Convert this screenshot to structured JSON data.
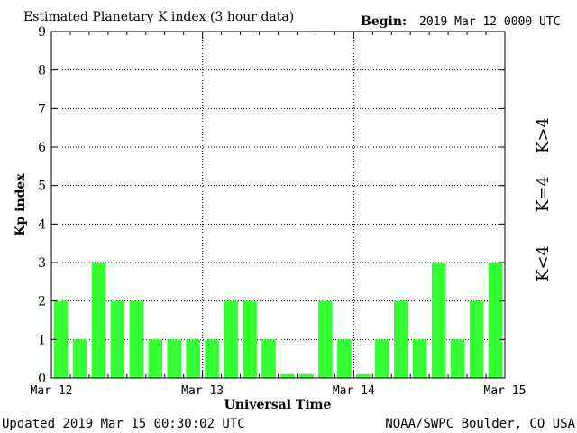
{
  "header": {
    "title": "Estimated Planetary K index (3 hour data)",
    "begin_label": "Begin:",
    "begin_value": "2019 Mar 12 0000 UTC"
  },
  "footer": {
    "updated": "Updated 2019 Mar 15 00:30:02 UTC",
    "source": "NOAA/SWPC Boulder, CO USA"
  },
  "legend": [
    {
      "label": "K>4",
      "color": "#ff2a00"
    },
    {
      "label": "K=4",
      "color": "#ffcc00"
    },
    {
      "label": "K<4",
      "color": "#33ff33"
    }
  ],
  "chart_data": {
    "type": "bar",
    "xlabel": "Universal Time",
    "ylabel": "Kp index",
    "ylim": [
      0,
      9
    ],
    "yticks": [
      0,
      1,
      2,
      3,
      4,
      5,
      6,
      7,
      8,
      9
    ],
    "x_tick_labels": [
      "Mar 12",
      "Mar 13",
      "Mar 14",
      "Mar 15"
    ],
    "grid": "dotted",
    "bar_color": "#33ff33",
    "values": [
      2,
      1,
      3,
      2,
      2,
      1,
      1,
      1,
      1,
      2,
      2,
      1,
      0.1,
      0.1,
      2,
      1,
      0.1,
      1,
      2,
      1,
      3,
      1,
      2,
      3
    ]
  }
}
